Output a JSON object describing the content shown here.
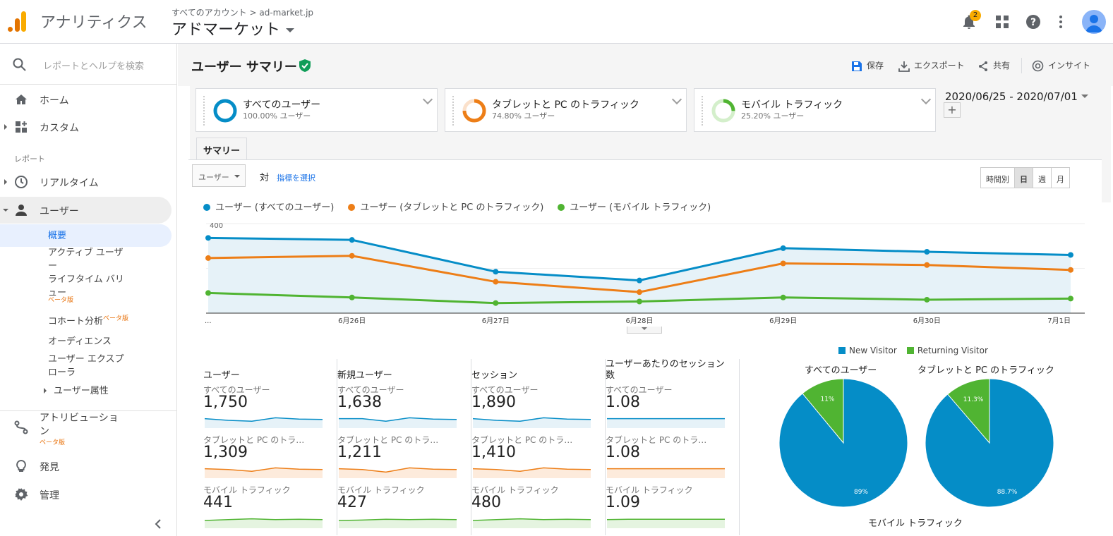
{
  "app": {
    "brand": "アナリティクス",
    "account_path": "すべてのアカウント > ad-market.jp",
    "property": "アドマーケット",
    "notifications": "2"
  },
  "sidebar": {
    "search_placeholder": "レポートとヘルプを検索",
    "items": [
      {
        "label": "ホーム"
      },
      {
        "label": "カスタム"
      },
      {
        "label": "リアルタイム"
      },
      {
        "label": "ユーザー"
      },
      {
        "label": "アトリビューション"
      },
      {
        "label": "発見"
      },
      {
        "label": "管理"
      }
    ],
    "section_label": "レポート",
    "sub_items": [
      {
        "label": "概要"
      },
      {
        "label": "アクティブ ユーザー"
      },
      {
        "label": "ライフタイム バリュー"
      },
      {
        "label": "コホート分析"
      },
      {
        "label": "オーディエンス"
      },
      {
        "label": "ユーザー エクスプローラ"
      },
      {
        "label": "ユーザー属性"
      }
    ],
    "beta": "ベータ版"
  },
  "page": {
    "title": "ユーザー サマリー",
    "actions": {
      "save": "保存",
      "export": "エクスポート",
      "share": "共有",
      "insights": "インサイト"
    },
    "segments": [
      {
        "name": "すべてのユーザー",
        "pct": "100.00% ユーザー",
        "color": "#058dc7"
      },
      {
        "name": "タブレットと PC のトラフィック",
        "pct": "74.80% ユーザー",
        "color": "#ed7e17"
      },
      {
        "name": "モバイル トラフィック",
        "pct": "25.20% ユーザー",
        "color": "#50b432"
      }
    ],
    "date_range": "2020/06/25 - 2020/07/01",
    "tab": "サマリー",
    "metric_select": "ユーザー",
    "vs": "対",
    "pick_metric": "指標を選択",
    "ranges": [
      "時間別",
      "日",
      "週",
      "月"
    ]
  },
  "chart_data": {
    "type": "line",
    "x": [
      "...",
      "6月26日",
      "6月27日",
      "6月28日",
      "6月29日",
      "6月30日",
      "7月1日"
    ],
    "ylim": [
      0,
      400
    ],
    "yticks": [
      "400",
      "200"
    ],
    "series": [
      {
        "name": "ユーザー (すべてのユーザー)",
        "color": "#058dc7",
        "values": [
          336,
          327,
          185,
          146,
          290,
          274,
          260
        ]
      },
      {
        "name": "ユーザー (タブレットと PC のトラフィック)",
        "color": "#ed7e17",
        "values": [
          246,
          256,
          140,
          94,
          222,
          215,
          193
        ]
      },
      {
        "name": "ユーザー (モバイル トラフィック)",
        "color": "#50b432",
        "values": [
          90,
          70,
          45,
          52,
          70,
          60,
          65
        ]
      }
    ]
  },
  "kpis": [
    {
      "title": "ユーザー",
      "rows": [
        {
          "seg": "すべてのユーザー",
          "val": "1,750"
        },
        {
          "seg": "タブレットと PC のトラ…",
          "val": "1,309"
        },
        {
          "seg": "モバイル トラフィック",
          "val": "441"
        }
      ]
    },
    {
      "title": "新規ユーザー",
      "rows": [
        {
          "seg": "すべてのユーザー",
          "val": "1,638"
        },
        {
          "seg": "タブレットと PC のトラ…",
          "val": "1,211"
        },
        {
          "seg": "モバイル トラフィック",
          "val": "427"
        }
      ]
    },
    {
      "title": "セッション",
      "rows": [
        {
          "seg": "すべてのユーザー",
          "val": "1,890"
        },
        {
          "seg": "タブレットと PC のトラ…",
          "val": "1,410"
        },
        {
          "seg": "モバイル トラフィック",
          "val": "480"
        }
      ]
    },
    {
      "title": "ユーザーあたりのセッション数",
      "rows": [
        {
          "seg": "すべてのユーザー",
          "val": "1.08"
        },
        {
          "seg": "タブレットと PC のトラ…",
          "val": "1.08"
        },
        {
          "seg": "モバイル トラフィック",
          "val": "1.09"
        }
      ]
    }
  ],
  "pies": {
    "legend": [
      {
        "name": "New Visitor",
        "color": "#058dc7"
      },
      {
        "name": "Returning Visitor",
        "color": "#50b432"
      }
    ],
    "charts": [
      {
        "title": "すべてのユーザー",
        "new": 89,
        "returning": 11,
        "new_label": "89%",
        "ret_label": "11%"
      },
      {
        "title": "タブレットと PC のトラフィック",
        "new": 88.7,
        "returning": 11.3,
        "new_label": "88.7%",
        "ret_label": "11.3%"
      }
    ],
    "third_title": "モバイル トラフィック"
  }
}
